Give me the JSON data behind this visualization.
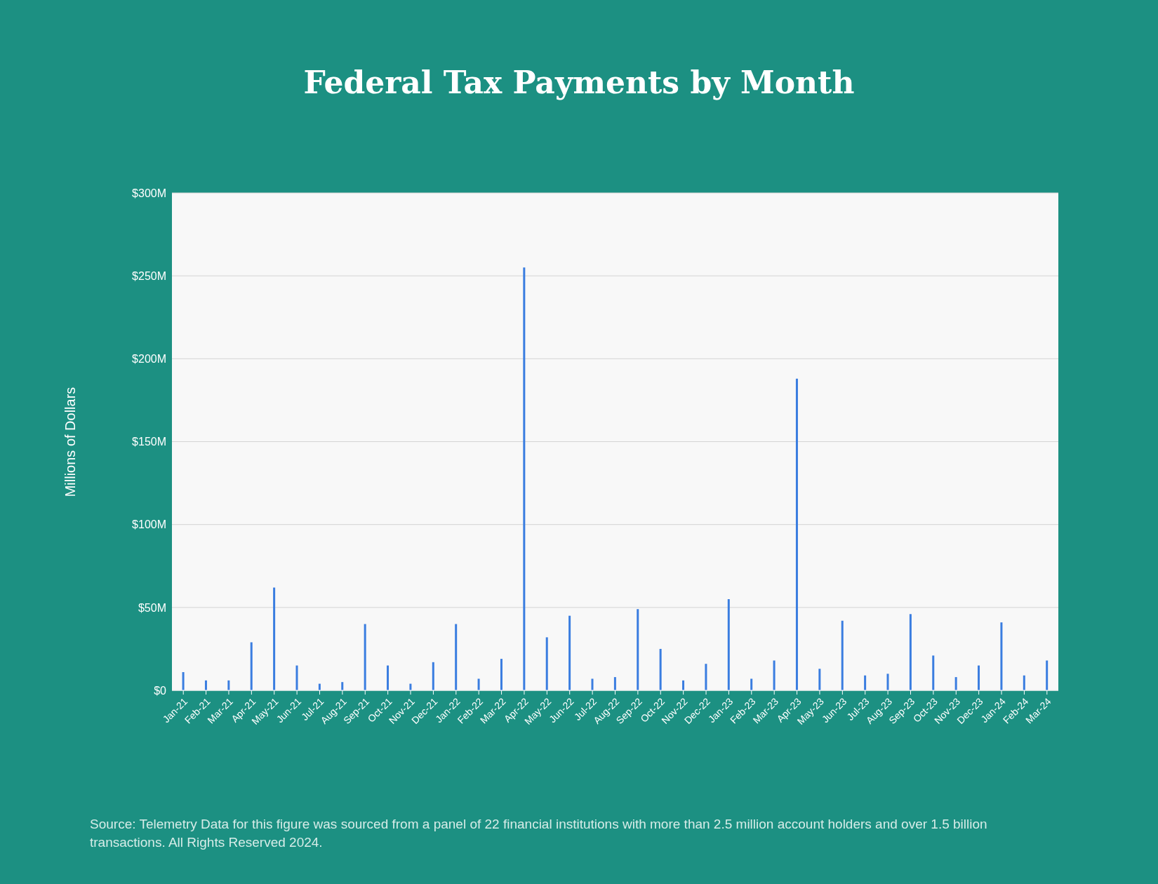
{
  "chart_data": {
    "type": "bar",
    "title": "Federal Tax Payments by Month",
    "ylabel": "Millions of Dollars",
    "categories": [
      "Jan-21",
      "Feb-21",
      "Mar-21",
      "Apr-21",
      "May-21",
      "Jun-21",
      "Jul-21",
      "Aug-21",
      "Sep-21",
      "Oct-21",
      "Nov-21",
      "Dec-21",
      "Jan-22",
      "Feb-22",
      "Mar-22",
      "Apr-22",
      "May-22",
      "Jun-22",
      "Jul-22",
      "Aug-22",
      "Sep-22",
      "Oct-22",
      "Nov-22",
      "Dec-22",
      "Jan-23",
      "Feb-23",
      "Mar-23",
      "Apr-23",
      "May-23",
      "Jun-23",
      "Jul-23",
      "Aug-23",
      "Sep-23",
      "Oct-23",
      "Nov-23",
      "Dec-23",
      "Jan-24",
      "Feb-24",
      "Mar-24"
    ],
    "values": [
      11,
      6,
      6,
      29,
      62,
      15,
      4,
      5,
      40,
      15,
      4,
      17,
      40,
      7,
      19,
      255,
      32,
      45,
      7,
      8,
      49,
      25,
      6,
      16,
      55,
      7,
      18,
      188,
      13,
      42,
      9,
      10,
      46,
      21,
      8,
      15,
      41,
      9,
      18
    ],
    "color": "#3a7de0",
    "ylim": [
      0,
      300
    ],
    "yticks": [
      {
        "value": 0,
        "label": "$0"
      },
      {
        "value": 50,
        "label": "$50M"
      },
      {
        "value": 100,
        "label": "$100M"
      },
      {
        "value": 150,
        "label": "$150M"
      },
      {
        "value": 200,
        "label": "$200M"
      },
      {
        "value": 250,
        "label": "$250M"
      },
      {
        "value": 300,
        "label": "$300M"
      }
    ],
    "grid": "y",
    "annotations": [
      "Source:  Telemetry Data for this figure was sourced from a panel of 22 financial institutions with more than 2.5 million account holders and over 1.5 billion transactions. All Rights Reserved 2024."
    ]
  }
}
